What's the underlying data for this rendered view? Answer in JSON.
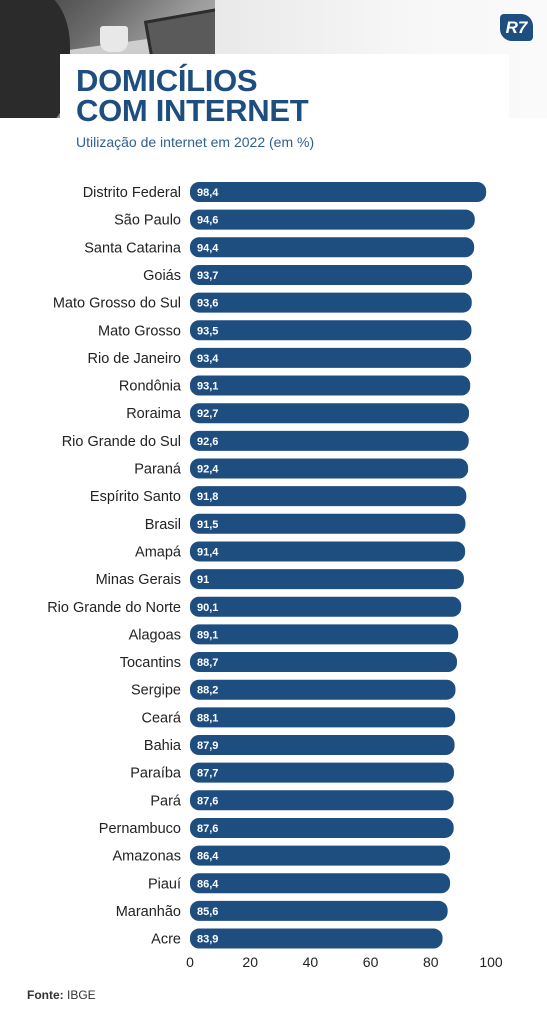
{
  "header": {
    "title_line1": "DOMICÍLIOS",
    "title_line2": "COM INTERNET",
    "subtitle": "Utilização de internet em 2022 (em %)",
    "logo": "R7"
  },
  "colors": {
    "accent": "#1e4d80",
    "bar": "#1e4d80"
  },
  "chart_data": {
    "type": "bar",
    "orientation": "horizontal",
    "categories": [
      "Distrito Federal",
      "São Paulo",
      "Santa Catarina",
      "Goiás",
      "Mato Grosso do Sul",
      "Mato Grosso",
      "Rio de Janeiro",
      "Rondônia",
      "Roraima",
      "Rio Grande do Sul",
      "Paraná",
      "Espírito Santo",
      "Brasil",
      "Amapá",
      "Minas Gerais",
      "Rio Grande do Norte",
      "Alagoas",
      "Tocantins",
      "Sergipe",
      "Ceará",
      "Bahia",
      "Paraíba",
      "Pará",
      "Pernambuco",
      "Amazonas",
      "Piauí",
      "Maranhão",
      "Acre"
    ],
    "values": [
      98.4,
      94.6,
      94.4,
      93.7,
      93.6,
      93.5,
      93.4,
      93.1,
      92.7,
      92.6,
      92.4,
      91.8,
      91.5,
      91.4,
      91,
      90.1,
      89.1,
      88.7,
      88.2,
      88.1,
      87.9,
      87.7,
      87.6,
      87.6,
      86.4,
      86.4,
      85.6,
      83.9
    ],
    "value_labels": [
      "98,4",
      "94,6",
      "94,4",
      "93,7",
      "93,6",
      "93,5",
      "93,4",
      "93,1",
      "92,7",
      "92,6",
      "92,4",
      "91,8",
      "91,5",
      "91,4",
      "91",
      "90,1",
      "89,1",
      "88,7",
      "88,2",
      "88,1",
      "87,9",
      "87,7",
      "87,6",
      "87,6",
      "86,4",
      "86,4",
      "85,6",
      "83,9"
    ],
    "xlim": [
      0,
      100
    ],
    "xticks": [
      "0",
      "20",
      "40",
      "60",
      "80",
      "100"
    ],
    "grid": false,
    "title": "Utilização de internet em 2022 (em %)"
  },
  "footer": {
    "source_label": "Fonte:",
    "source_value": "IBGE"
  }
}
